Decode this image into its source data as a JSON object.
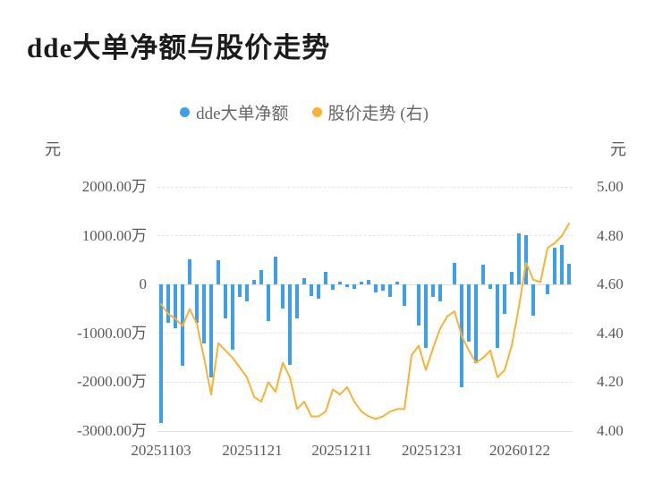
{
  "page": {
    "title": "dde大单净额与股价走势",
    "unit_left": "元",
    "unit_right": "元"
  },
  "legend": {
    "items": [
      {
        "label": "dde大单净额",
        "color": "#3d9fe8"
      },
      {
        "label": "股价走势 (右)",
        "color": "#f8b235"
      }
    ]
  },
  "chart_data": {
    "type": "combo",
    "title": "dde大单净额与股价走势",
    "x_axis": {
      "points": 58,
      "tick_labels": [
        "20251103",
        "20251121",
        "20251211",
        "20251231",
        "20260122"
      ],
      "description": "trading days from 20251103 to 20260122"
    },
    "left_axis": {
      "unit": "元",
      "tick_labels": [
        "2000.00万",
        "1000.00万",
        "0",
        "-1000.00万",
        "-2000.00万",
        "-3000.00万"
      ],
      "max_wan": 2000,
      "min_wan": -3000
    },
    "right_axis": {
      "unit": "元",
      "tick_labels": [
        "5.00",
        "4.80",
        "4.60",
        "4.40",
        "4.20",
        "4.00"
      ],
      "max": 5.0,
      "min": 4.0
    },
    "grid": {
      "horizontal_gridlines": "dashed",
      "zero_line": "solid",
      "bottom_line": "solid"
    },
    "series": [
      {
        "name": "dde大单净额",
        "type": "bar",
        "axis": "left",
        "unit": "万元",
        "color": "#3d9fe8",
        "values_wan": [
          -2830,
          -780,
          -890,
          -1660,
          520,
          -780,
          -1200,
          -1900,
          500,
          -700,
          -1330,
          -260,
          -350,
          100,
          290,
          -740,
          570,
          -500,
          -1650,
          -690,
          140,
          -230,
          -290,
          260,
          -110,
          60,
          -60,
          -80,
          60,
          100,
          -170,
          -120,
          -260,
          60,
          -440,
          0,
          -840,
          -1300,
          -250,
          -350,
          0,
          440,
          -2110,
          -1170,
          -1600,
          400,
          -80,
          -1290,
          -600,
          260,
          1040,
          1010,
          -630,
          0,
          -200,
          750,
          810,
          430
        ]
      },
      {
        "name": "股价走势",
        "type": "line",
        "axis": "right",
        "unit": "元",
        "color": "#f8b235",
        "values": [
          4.52,
          4.48,
          4.46,
          4.43,
          4.5,
          4.44,
          4.3,
          4.15,
          4.36,
          4.33,
          4.3,
          4.26,
          4.22,
          4.14,
          4.12,
          4.2,
          4.16,
          4.28,
          4.22,
          4.09,
          4.12,
          4.06,
          4.06,
          4.08,
          4.17,
          4.15,
          4.18,
          4.12,
          4.08,
          4.06,
          4.05,
          4.06,
          4.08,
          4.09,
          4.09,
          4.31,
          4.35,
          4.25,
          4.34,
          4.42,
          4.47,
          4.49,
          4.39,
          4.33,
          4.28,
          4.3,
          4.33,
          4.22,
          4.25,
          4.35,
          4.51,
          4.69,
          4.62,
          4.61,
          4.75,
          4.77,
          4.8,
          4.85
        ]
      }
    ]
  }
}
